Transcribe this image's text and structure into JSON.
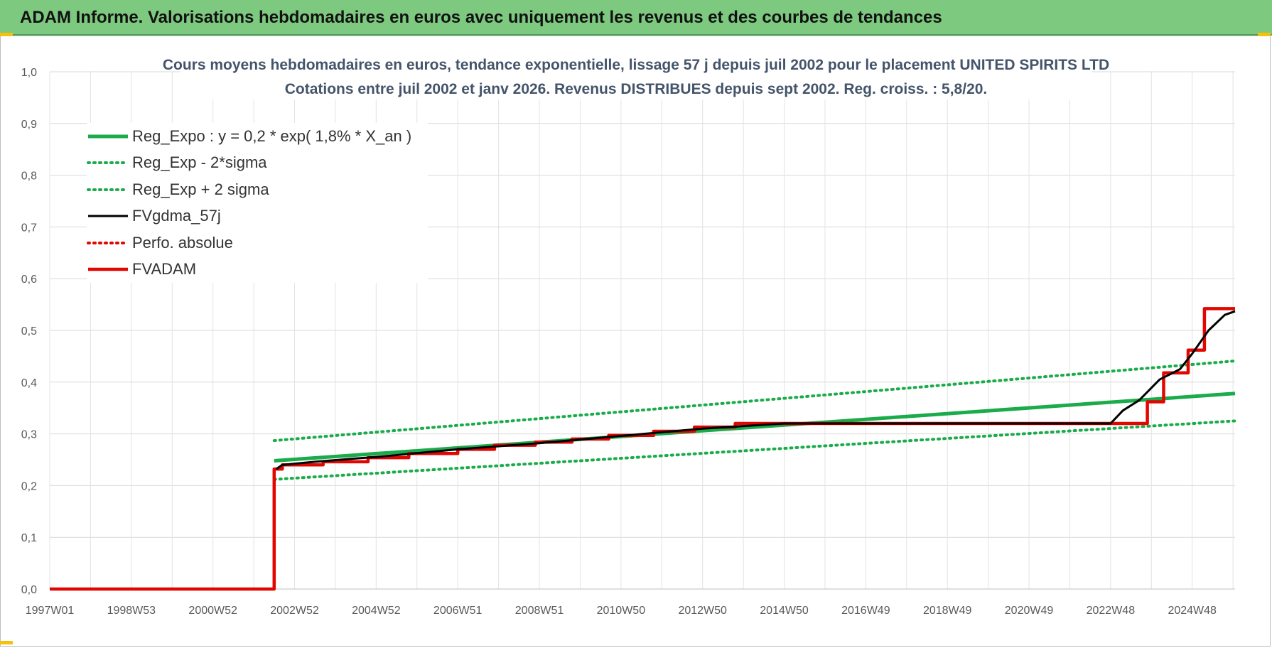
{
  "banner": {
    "title": "ADAM Informe. Valorisations hebdomadaires en euros avec uniquement les revenus et des courbes de tendances"
  },
  "chart_data": {
    "type": "line",
    "title": "Cours moyens hebdomadaires en euros, tendance exponentielle, lissage 57 j depuis juil 2002 pour le placement UNITED SPIRITS LTD",
    "subtitle": "Cotations entre juil 2002 et janv 2026. Revenus DISTRIBUES depuis sept 2002. Reg. croiss. : 5,8/20.",
    "xlabel": "",
    "ylabel": "",
    "x_tick_labels": [
      "1997W01",
      "1998W53",
      "2000W52",
      "2002W52",
      "2004W52",
      "2006W51",
      "2008W51",
      "2010W50",
      "2012W50",
      "2014W50",
      "2016W49",
      "2018W49",
      "2020W49",
      "2022W48",
      "2024W48"
    ],
    "y_tick_labels": [
      "0,0",
      "0,1",
      "0,2",
      "0,3",
      "0,4",
      "0,5",
      "0,6",
      "0,7",
      "0,8",
      "0,9",
      "1,0"
    ],
    "xlim": [
      1997.0,
      2026.05
    ],
    "ylim": [
      0,
      1.0
    ],
    "grid": true,
    "legend_position": "top-left",
    "series": [
      {
        "name": "Reg_Expo : y = 0,2 * exp( 1,8% *  X_an )",
        "color": "#1aab4b",
        "style": "solid",
        "x": [
          2002.5,
          2026.05
        ],
        "y": [
          0.248,
          0.378
        ]
      },
      {
        "name": "Reg_Exp - 2*sigma",
        "color": "#1aab4b",
        "style": "dotted",
        "x": [
          2002.5,
          2026.05
        ],
        "y": [
          0.212,
          0.325
        ]
      },
      {
        "name": "Reg_Exp + 2 sigma",
        "color": "#1aab4b",
        "style": "dotted",
        "x": [
          2002.5,
          2026.05
        ],
        "y": [
          0.287,
          0.441
        ]
      },
      {
        "name": "FVgdma_57j",
        "color": "#000000",
        "style": "solid",
        "x": [
          2002.55,
          2002.7,
          2003.5,
          2005.1,
          2007.0,
          2009.0,
          2011.0,
          2013.0,
          2015.0,
          2023.0,
          2023.3,
          2023.7,
          2024.2,
          2024.7,
          2025.0,
          2025.4,
          2025.8,
          2026.05
        ],
        "y": [
          0.232,
          0.24,
          0.246,
          0.256,
          0.27,
          0.282,
          0.296,
          0.31,
          0.32,
          0.32,
          0.345,
          0.365,
          0.405,
          0.425,
          0.455,
          0.5,
          0.53,
          0.537
        ]
      },
      {
        "name": "Perfo. absolue",
        "color": "#e10600",
        "style": "dotted",
        "x": [],
        "y": []
      },
      {
        "name": "FVADAM",
        "color": "#e10600",
        "style": "solid",
        "x": [
          1997.0,
          2002.5,
          2002.5,
          2002.7,
          2002.7,
          2003.7,
          2003.7,
          2004.8,
          2004.8,
          2005.8,
          2005.8,
          2007.0,
          2007.0,
          2007.9,
          2007.9,
          2008.9,
          2008.9,
          2009.8,
          2009.8,
          2010.7,
          2010.7,
          2011.8,
          2011.8,
          2012.8,
          2012.8,
          2013.8,
          2013.8,
          2023.0,
          2023.0,
          2023.9,
          2023.9,
          2024.3,
          2024.3,
          2024.9,
          2024.9,
          2025.3,
          2025.3,
          2025.6,
          2025.6,
          2026.05
        ],
        "y": [
          0.0,
          0.0,
          0.232,
          0.232,
          0.24,
          0.24,
          0.246,
          0.246,
          0.254,
          0.254,
          0.262,
          0.262,
          0.27,
          0.27,
          0.278,
          0.278,
          0.284,
          0.284,
          0.29,
          0.29,
          0.297,
          0.297,
          0.305,
          0.305,
          0.313,
          0.313,
          0.32,
          0.32,
          0.32,
          0.32,
          0.362,
          0.362,
          0.418,
          0.418,
          0.462,
          0.462,
          0.542,
          0.542,
          0.542,
          0.542
        ]
      }
    ]
  }
}
